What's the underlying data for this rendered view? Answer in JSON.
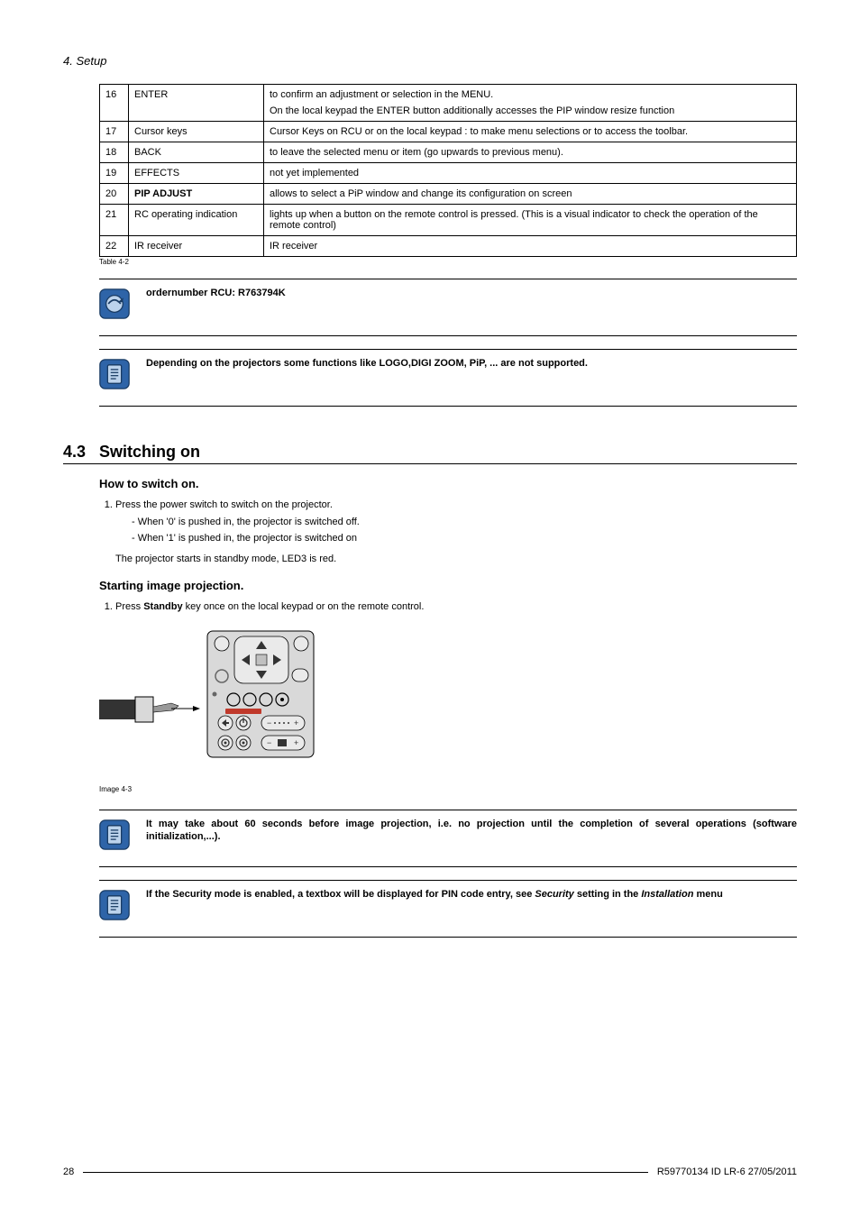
{
  "page_header": "4.  Setup",
  "footer": {
    "page": "28",
    "rev": "R59770134  ID LR-6  27/05/2011"
  },
  "table": {
    "rows": [
      {
        "num": "16",
        "name": "ENTER",
        "desc": [
          "to confirm an adjustment or selection in the MENU.",
          "On the local keypad the ENTER button additionally accesses the PIP window resize function"
        ]
      },
      {
        "num": "17",
        "name": "Cursor keys",
        "desc": [
          "Cursor Keys on RCU or on the local keypad :  to make menu selections or to access the toolbar."
        ]
      },
      {
        "num": "18",
        "name": "BACK",
        "desc": [
          "to leave the selected menu or item (go upwards to previous menu)."
        ]
      },
      {
        "num": "19",
        "name": "EFFECTS",
        "desc": [
          "not yet implemented"
        ]
      },
      {
        "num": "20",
        "name": "PIP ADJUST",
        "name_bold": true,
        "desc": [
          "allows to select a PiP window and change its configuration on screen"
        ]
      },
      {
        "num": "21",
        "name": "RC operating indication",
        "desc": [
          "lights up when a button on the remote control is pressed.  (This is a visual indicator to check the operation of the remote control)"
        ]
      },
      {
        "num": "22",
        "name": "IR receiver",
        "desc": [
          "IR receiver"
        ]
      }
    ],
    "caption": "Table 4-2"
  },
  "callouts": {
    "tip1": "ordernumber RCU: R763794K",
    "note1": "Depending on the projectors some functions like LOGO,DIGI ZOOM, PiP, ...  are not supported.",
    "note2": "It may take about 60 seconds before image projection, i.e.  no projection until the completion of several operations (software initialization,...).",
    "note3_a": "If the Security mode is enabled, a textbox will be displayed for PIN code entry, see ",
    "note3_sec": "Security",
    "note3_b": " setting in the ",
    "note3_inst": "Installation",
    "note3_c": " menu"
  },
  "section": {
    "num": "4.3",
    "title": "Switching on"
  },
  "sub1": "How to switch on.",
  "steps1": {
    "s1": "Press the power switch to switch on the projector.",
    "d1": "When '0' is pushed in, the projector is switched off.",
    "d2": "When '1' is pushed in, the projector is switched on",
    "after": "The projector starts in standby mode, LED3 is red."
  },
  "sub2": "Starting image projection.",
  "steps2": {
    "s1a": "Press ",
    "s1b": "Standby",
    "s1c": " key once on the local keypad or on the remote control."
  },
  "figure_caption": "Image 4-3",
  "colors": {
    "tip_bg": "#2e64a8",
    "tip_border": "#183a62",
    "note_bg": "#2e64a8",
    "note_border": "#183a62",
    "keypad_body": "#d9d9d9",
    "keypad_dark": "#333333"
  }
}
